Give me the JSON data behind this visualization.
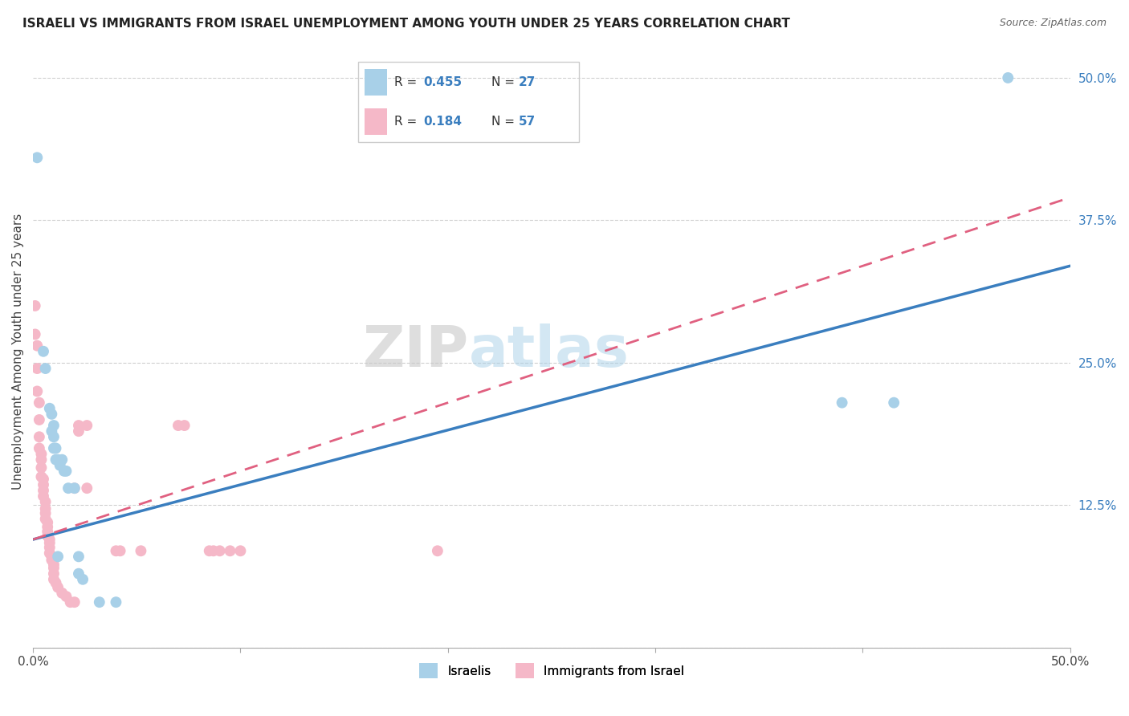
{
  "title": "ISRAELI VS IMMIGRANTS FROM ISRAEL UNEMPLOYMENT AMONG YOUTH UNDER 25 YEARS CORRELATION CHART",
  "source": "Source: ZipAtlas.com",
  "ylabel": "Unemployment Among Youth under 25 years",
  "legend_label_blue": "Israelis",
  "legend_label_pink": "Immigrants from Israel",
  "xlim": [
    0,
    0.5
  ],
  "ylim": [
    0,
    0.52
  ],
  "yticks": [
    0.0,
    0.125,
    0.25,
    0.375,
    0.5
  ],
  "ytick_labels": [
    "",
    "12.5%",
    "25.0%",
    "37.5%",
    "50.0%"
  ],
  "watermark_zip": "ZIP",
  "watermark_atlas": "atlas",
  "blue_color": "#a8d0e8",
  "blue_line_color": "#3a7ebf",
  "pink_color": "#f5b8c8",
  "pink_line_color": "#e06080",
  "blue_r": 0.455,
  "blue_n": 27,
  "pink_r": 0.184,
  "pink_n": 57,
  "blue_points": [
    [
      0.002,
      0.43
    ],
    [
      0.005,
      0.26
    ],
    [
      0.006,
      0.245
    ],
    [
      0.008,
      0.21
    ],
    [
      0.009,
      0.205
    ],
    [
      0.009,
      0.19
    ],
    [
      0.01,
      0.195
    ],
    [
      0.01,
      0.185
    ],
    [
      0.01,
      0.175
    ],
    [
      0.011,
      0.175
    ],
    [
      0.011,
      0.165
    ],
    [
      0.012,
      0.165
    ],
    [
      0.013,
      0.16
    ],
    [
      0.014,
      0.165
    ],
    [
      0.015,
      0.155
    ],
    [
      0.016,
      0.155
    ],
    [
      0.017,
      0.14
    ],
    [
      0.02,
      0.14
    ],
    [
      0.022,
      0.08
    ],
    [
      0.022,
      0.065
    ],
    [
      0.024,
      0.06
    ],
    [
      0.032,
      0.04
    ],
    [
      0.39,
      0.215
    ],
    [
      0.415,
      0.215
    ],
    [
      0.47,
      0.5
    ],
    [
      0.04,
      0.04
    ],
    [
      0.012,
      0.08
    ]
  ],
  "pink_points": [
    [
      0.001,
      0.3
    ],
    [
      0.001,
      0.275
    ],
    [
      0.002,
      0.265
    ],
    [
      0.002,
      0.245
    ],
    [
      0.002,
      0.225
    ],
    [
      0.003,
      0.215
    ],
    [
      0.003,
      0.2
    ],
    [
      0.003,
      0.185
    ],
    [
      0.003,
      0.175
    ],
    [
      0.004,
      0.17
    ],
    [
      0.004,
      0.165
    ],
    [
      0.004,
      0.158
    ],
    [
      0.004,
      0.15
    ],
    [
      0.005,
      0.148
    ],
    [
      0.005,
      0.143
    ],
    [
      0.005,
      0.138
    ],
    [
      0.005,
      0.133
    ],
    [
      0.006,
      0.128
    ],
    [
      0.006,
      0.122
    ],
    [
      0.006,
      0.118
    ],
    [
      0.006,
      0.113
    ],
    [
      0.007,
      0.11
    ],
    [
      0.007,
      0.106
    ],
    [
      0.007,
      0.102
    ],
    [
      0.007,
      0.098
    ],
    [
      0.008,
      0.095
    ],
    [
      0.008,
      0.092
    ],
    [
      0.008,
      0.088
    ],
    [
      0.008,
      0.083
    ],
    [
      0.009,
      0.08
    ],
    [
      0.009,
      0.077
    ],
    [
      0.01,
      0.073
    ],
    [
      0.01,
      0.07
    ],
    [
      0.01,
      0.065
    ],
    [
      0.01,
      0.06
    ],
    [
      0.011,
      0.057
    ],
    [
      0.012,
      0.053
    ],
    [
      0.014,
      0.048
    ],
    [
      0.016,
      0.045
    ],
    [
      0.018,
      0.04
    ],
    [
      0.02,
      0.04
    ],
    [
      0.02,
      0.14
    ],
    [
      0.022,
      0.195
    ],
    [
      0.022,
      0.19
    ],
    [
      0.026,
      0.195
    ],
    [
      0.026,
      0.14
    ],
    [
      0.04,
      0.085
    ],
    [
      0.042,
      0.085
    ],
    [
      0.052,
      0.085
    ],
    [
      0.07,
      0.195
    ],
    [
      0.073,
      0.195
    ],
    [
      0.085,
      0.085
    ],
    [
      0.087,
      0.085
    ],
    [
      0.09,
      0.085
    ],
    [
      0.095,
      0.085
    ],
    [
      0.1,
      0.085
    ],
    [
      0.195,
      0.085
    ]
  ],
  "blue_line_x0": 0.0,
  "blue_line_y0": 0.095,
  "blue_line_x1": 0.5,
  "blue_line_y1": 0.335,
  "pink_line_x0": 0.0,
  "pink_line_y0": 0.095,
  "pink_line_x1": 0.5,
  "pink_line_y1": 0.395
}
